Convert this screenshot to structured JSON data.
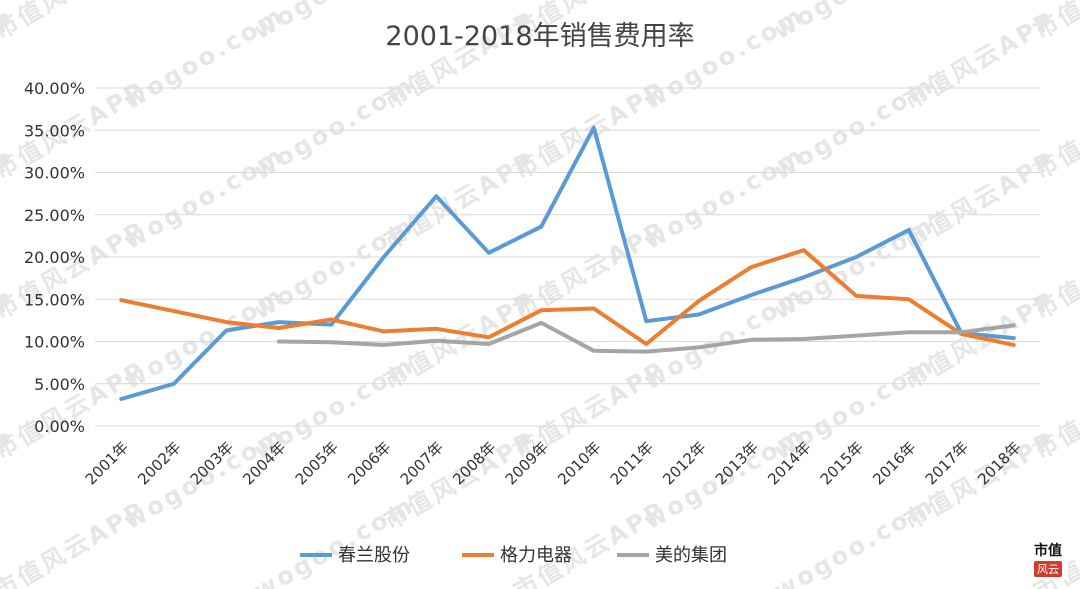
{
  "colors": {
    "chunlan": "#5b9bd5",
    "gree": "#ed7d31",
    "midea": "#a5a5a5",
    "grid": "#d9d9d9",
    "text": "#333333"
  },
  "watermark": {
    "site": "wogoo.com",
    "brand": "市值风云APP"
  },
  "seal": {
    "top": "市值",
    "bottom": "风云"
  },
  "chart_data": {
    "type": "line",
    "title": "2001-2018年销售费用率",
    "xlabel": "",
    "ylabel": "",
    "ylim": [
      0,
      0.4
    ],
    "grid": true,
    "legend_position": "bottom",
    "y_ticks": [
      "0.00%",
      "5.00%",
      "10.00%",
      "15.00%",
      "20.00%",
      "25.00%",
      "30.00%",
      "35.00%",
      "40.00%"
    ],
    "categories": [
      "2001年",
      "2002年",
      "2003年",
      "2004年",
      "2005年",
      "2006年",
      "2007年",
      "2008年",
      "2009年",
      "2010年",
      "2011年",
      "2012年",
      "2013年",
      "2014年",
      "2015年",
      "2016年",
      "2017年",
      "2018年"
    ],
    "series": [
      {
        "name": "春兰股份",
        "color_key": "chunlan",
        "values": [
          0.032,
          0.05,
          0.113,
          0.123,
          0.12,
          0.2,
          0.272,
          0.205,
          0.236,
          0.353,
          0.124,
          0.132,
          0.155,
          0.176,
          0.2,
          0.232,
          0.11,
          0.104
        ]
      },
      {
        "name": "格力电器",
        "color_key": "gree",
        "values": [
          0.149,
          0.136,
          0.123,
          0.116,
          0.126,
          0.112,
          0.115,
          0.105,
          0.137,
          0.139,
          0.097,
          0.148,
          0.188,
          0.208,
          0.154,
          0.15,
          0.109,
          0.096
        ]
      },
      {
        "name": "美的集团",
        "color_key": "midea",
        "values": [
          null,
          null,
          null,
          0.1,
          0.099,
          0.096,
          0.101,
          0.097,
          0.122,
          0.089,
          0.088,
          0.093,
          0.102,
          0.103,
          0.107,
          0.111,
          0.111,
          0.119
        ]
      }
    ]
  }
}
